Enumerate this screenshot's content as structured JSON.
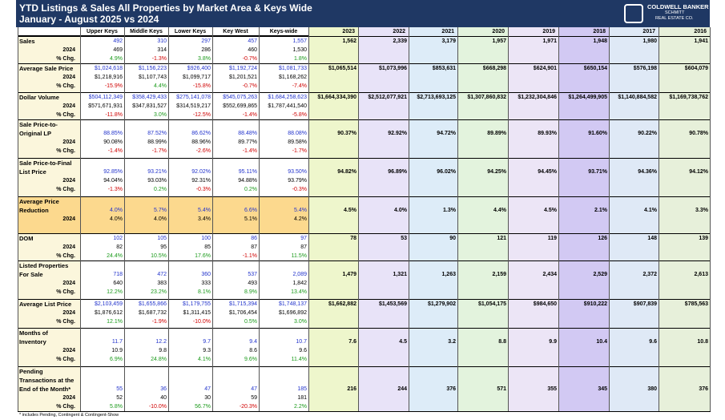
{
  "header": {
    "title": "YTD Listings & Sales All Properties by Market Area & Keys Wide",
    "subtitle": "January - August 2025 vs 2024",
    "logo": [
      "COLDWELL BANKER",
      "SCHMITT",
      "REAL ESTATE CO."
    ]
  },
  "columns": {
    "areas": [
      "Upper Keys",
      "Middle Keys",
      "Lower Keys",
      "Key West",
      "Keys-wide"
    ],
    "years": [
      "2023",
      "2022",
      "2021",
      "2020",
      "2019",
      "2018",
      "2017",
      "2016"
    ],
    "year_colors": [
      "#eef6cc",
      "#e8e3f8",
      "#ddecf8",
      "#e3f3dd",
      "#ece5f6",
      "#d2c9f3",
      "#dfe9f6",
      "#e7f0da"
    ]
  },
  "sections": [
    {
      "label": [
        "Sales"
      ],
      "current": [
        "492",
        "310",
        "297",
        "457",
        "1,557"
      ],
      "prior_label": "2024",
      "prior": [
        "469",
        "314",
        "286",
        "460",
        "1,530"
      ],
      "change_label": "% Chg.",
      "change": [
        "4.9%",
        "-1.3%",
        "3.8%",
        "-0.7%",
        "1.8%"
      ],
      "years": [
        "1,562",
        "2,339",
        "3,179",
        "1,957",
        "1,971",
        "1,948",
        "1,980",
        "1,941"
      ]
    },
    {
      "label": [
        "Average Sale Price"
      ],
      "current": [
        "$1,024,618",
        "$1,156,223",
        "$926,400",
        "$1,192,724",
        "$1,081,733"
      ],
      "prior_label": "2024",
      "prior": [
        "$1,218,916",
        "$1,107,743",
        "$1,099,717",
        "$1,201,521",
        "$1,168,262"
      ],
      "change_label": "% Chg.",
      "change": [
        "-15.9%",
        "4.4%",
        "-15.8%",
        "-0.7%",
        "-7.4%"
      ],
      "years": [
        "$1,065,514",
        "$1,073,996",
        "$853,631",
        "$668,298",
        "$624,901",
        "$650,154",
        "$576,198",
        "$604,079"
      ]
    },
    {
      "label": [
        "Dollar Volume"
      ],
      "current": [
        "$504,112,349",
        "$358,429,433",
        "$275,141,078",
        "$545,075,263",
        "$1,684,258,623"
      ],
      "prior_label": "2024",
      "prior": [
        "$571,671,931",
        "$347,831,527",
        "$314,519,217",
        "$552,699,865",
        "$1,787,441,540"
      ],
      "change_label": "% Chg.",
      "change": [
        "-11.8%",
        "3.0%",
        "-12.5%",
        "-1.4%",
        "-5.8%"
      ],
      "years": [
        "$1,664,334,390",
        "$2,512,077,921",
        "$2,713,693,125",
        "$1,307,860,832",
        "$1,232,304,846",
        "$1,264,499,905",
        "$1,140,884,582",
        "$1,169,738,762"
      ]
    },
    {
      "label": [
        "Sale Price-to-",
        "Original LP"
      ],
      "current": [
        "88.85%",
        "87.52%",
        "86.62%",
        "88.48%",
        "88.08%"
      ],
      "prior_label": "2024",
      "prior": [
        "90.08%",
        "88.99%",
        "88.96%",
        "89.77%",
        "89.58%"
      ],
      "change_label": "% Chg.",
      "change": [
        "-1.4%",
        "-1.7%",
        "-2.6%",
        "-1.4%",
        "-1.7%"
      ],
      "years": [
        "90.37%",
        "92.92%",
        "94.72%",
        "89.89%",
        "89.93%",
        "91.60%",
        "90.22%",
        "90.78%"
      ]
    },
    {
      "label": [
        "Sale Price-to-Final",
        "List Price"
      ],
      "current": [
        "92.85%",
        "93.21%",
        "92.02%",
        "95.11%",
        "93.50%"
      ],
      "prior_label": "2024",
      "prior": [
        "94.04%",
        "93.03%",
        "92.31%",
        "94.88%",
        "93.79%"
      ],
      "change_label": "% Chg.",
      "change": [
        "-1.3%",
        "0.2%",
        "-0.3%",
        "0.2%",
        "-0.3%"
      ],
      "years": [
        "94.82%",
        "96.89%",
        "96.02%",
        "94.25%",
        "94.45%",
        "93.71%",
        "94.36%",
        "94.12%"
      ]
    },
    {
      "label": [
        "Average Price",
        "Reduction"
      ],
      "color": "#fcd98e",
      "current": [
        "4.0%",
        "5.7%",
        "5.4%",
        "6.6%",
        "5.4%"
      ],
      "prior_label": "2024",
      "prior": [
        "4.0%",
        "4.0%",
        "3.4%",
        "5.1%",
        "4.2%"
      ],
      "years": [
        "4.5%",
        "4.0%",
        "1.3%",
        "4.4%",
        "4.5%",
        "2.1%",
        "4.1%",
        "3.3%"
      ]
    },
    {
      "label": [
        "DOM"
      ],
      "current": [
        "102",
        "105",
        "100",
        "86",
        "97"
      ],
      "prior_label": "2024",
      "prior": [
        "82",
        "95",
        "85",
        "87",
        "87"
      ],
      "change_label": "% Chg.",
      "change": [
        "24.4%",
        "10.5%",
        "17.6%",
        "-1.1%",
        "11.5%"
      ],
      "years": [
        "78",
        "53",
        "90",
        "121",
        "119",
        "126",
        "148",
        "139"
      ]
    },
    {
      "label": [
        "Listed Properties",
        "For Sale"
      ],
      "current": [
        "718",
        "472",
        "360",
        "537",
        "2,089"
      ],
      "prior_label": "2024",
      "prior": [
        "640",
        "383",
        "333",
        "493",
        "1,842"
      ],
      "change_label": "% Chg.",
      "change": [
        "12.2%",
        "23.2%",
        "8.1%",
        "8.9%",
        "13.4%"
      ],
      "years": [
        "1,479",
        "1,321",
        "1,263",
        "2,159",
        "2,434",
        "2,529",
        "2,372",
        "2,613"
      ]
    },
    {
      "label": [
        "Average List Price"
      ],
      "current": [
        "$2,103,459",
        "$1,655,866",
        "$1,179,755",
        "$1,715,394",
        "$1,748,137"
      ],
      "prior_label": "2024",
      "prior": [
        "$1,876,612",
        "$1,687,732",
        "$1,311,415",
        "$1,706,454",
        "$1,696,892"
      ],
      "change_label": "% Chg.",
      "change": [
        "12.1%",
        "-1.9%",
        "-10.0%",
        "0.5%",
        "3.0%"
      ],
      "years": [
        "$1,662,882",
        "$1,453,569",
        "$1,279,902",
        "$1,054,175",
        "$984,650",
        "$910,222",
        "$907,839",
        "$785,563"
      ]
    },
    {
      "label": [
        "Months of",
        "Inventory"
      ],
      "current": [
        "11.7",
        "12.2",
        "9.7",
        "9.4",
        "10.7"
      ],
      "prior_label": "2024",
      "prior": [
        "10.9",
        "9.8",
        "9.3",
        "8.6",
        "9.6"
      ],
      "change_label": "% Chg.",
      "change": [
        "6.9%",
        "24.8%",
        "4.1%",
        "9.6%",
        "11.4%"
      ],
      "years": [
        "7.6",
        "4.5",
        "3.2",
        "8.8",
        "9.9",
        "10.4",
        "9.6",
        "10.8"
      ]
    },
    {
      "label": [
        "Pending",
        "Transactions at the",
        "End of the Month*"
      ],
      "current": [
        "55",
        "36",
        "47",
        "47",
        "185"
      ],
      "prior_label": "2024",
      "prior": [
        "52",
        "40",
        "30",
        "59",
        "181"
      ],
      "change_label": "% Chg.",
      "change": [
        "5.8%",
        "-10.0%",
        "56.7%",
        "-20.3%",
        "2.2%"
      ],
      "years": [
        "216",
        "244",
        "376",
        "571",
        "355",
        "345",
        "380",
        "376"
      ]
    }
  ],
  "footnote": "* includes Pending, Contingent & Contingent-Show"
}
